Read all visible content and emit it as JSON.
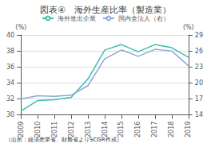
{
  "chart_data": {
    "type": "line",
    "title": "図表④　海外生産比率（製造業）",
    "subtitle": "（出所：経済産業省、財務省よりSCGR作成）",
    "categories": [
      "2009",
      "2010",
      "2011",
      "2012",
      "2013",
      "2014",
      "2015",
      "2016",
      "2017",
      "2018",
      "2019"
    ],
    "series": [
      {
        "name": "海外進出企業",
        "color": "#3bbfad",
        "values": [
          30.5,
          31.8,
          31.9,
          32.2,
          34.5,
          38.1,
          38.8,
          37.9,
          38.8,
          38.4,
          37.2
        ]
      },
      {
        "name": "国内全法人（右）",
        "color": "#8aaad8",
        "axis": "y2",
        "values": [
          17.0,
          17.6,
          17.5,
          17.7,
          19.5,
          24.5,
          26.2,
          25.0,
          26.3,
          26.0,
          23.2
        ]
      }
    ],
    "ylabel": "(%)",
    "y2label": "(%)",
    "ylim": [
      30,
      40
    ],
    "yticks": [
      30,
      32,
      34,
      36,
      38,
      40
    ],
    "y2lim": [
      14,
      29
    ],
    "y2ticks": [
      14,
      17,
      20,
      23,
      26,
      29
    ],
    "grid": true,
    "legend": "top"
  }
}
